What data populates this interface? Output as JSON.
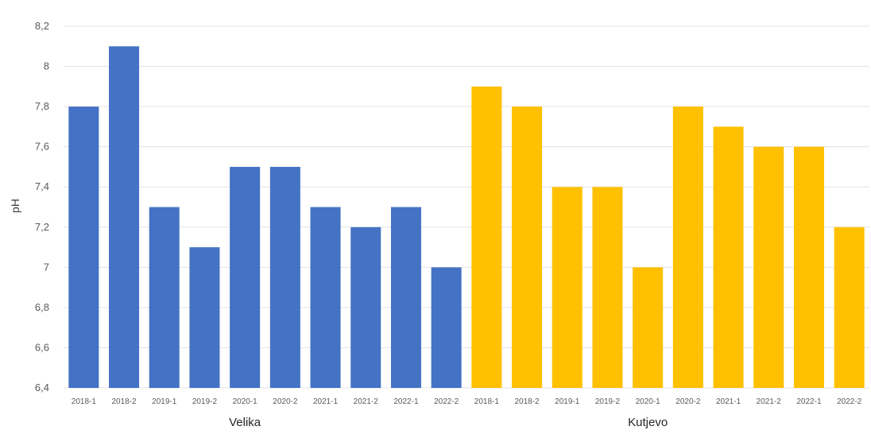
{
  "chart_data": {
    "type": "bar",
    "ylabel": "pH",
    "ylim": [
      6.4,
      8.2
    ],
    "ytick_step": 0.2,
    "decimal_separator": ",",
    "grid": true,
    "groups": [
      {
        "name": "Velika",
        "color": "#4472c4",
        "categories": [
          "2018-1",
          "2018-2",
          "2019-1",
          "2019-2",
          "2020-1",
          "2020-2",
          "2021-1",
          "2021-2",
          "2022-1",
          "2022-2"
        ],
        "values": [
          7.8,
          8.1,
          7.3,
          7.1,
          7.5,
          7.5,
          7.3,
          7.2,
          7.3,
          7.0
        ]
      },
      {
        "name": "Kutjevo",
        "color": "#ffc000",
        "categories": [
          "2018-1",
          "2018-2",
          "2019-1",
          "2019-2",
          "2020-1",
          "2020-2",
          "2021-1",
          "2021-2",
          "2022-1",
          "2022-2"
        ],
        "values": [
          7.9,
          7.8,
          7.4,
          7.4,
          7.0,
          7.8,
          7.7,
          7.6,
          7.6,
          7.2
        ]
      }
    ]
  }
}
